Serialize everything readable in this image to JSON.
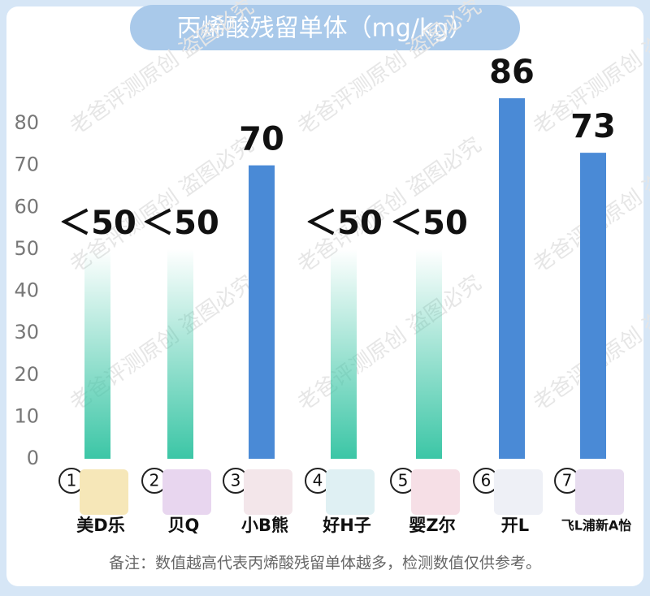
{
  "chart_data": {
    "type": "bar",
    "title": "丙烯酸残留单体（mg/kg）",
    "categories": [
      "美D乐",
      "贝Q",
      "小B熊",
      "好H子",
      "婴Z尔",
      "开L",
      "飞L浦新A怡"
    ],
    "index_labels": [
      "1",
      "2",
      "3",
      "4",
      "5",
      "6",
      "7"
    ],
    "values": [
      50,
      50,
      70,
      50,
      50,
      86,
      73
    ],
    "value_labels": [
      "＜50",
      "＜50",
      "70",
      "＜50",
      "＜50",
      "86",
      "73"
    ],
    "colors": [
      "#3cc6a6",
      "#3cc6a6",
      "#4a8ad6",
      "#3cc6a6",
      "#3cc6a6",
      "#4a8ad6",
      "#4a8ad6"
    ],
    "fade": [
      true,
      true,
      false,
      true,
      true,
      false,
      false
    ],
    "ylim": [
      0,
      80
    ],
    "yticks": [
      0,
      10,
      20,
      30,
      40,
      50,
      60,
      70,
      80
    ],
    "watermark": "老爸评测原创 盗图必究",
    "note": "备注：数值越高代表丙烯酸残留单体越多，检测数值仅供参考。"
  }
}
